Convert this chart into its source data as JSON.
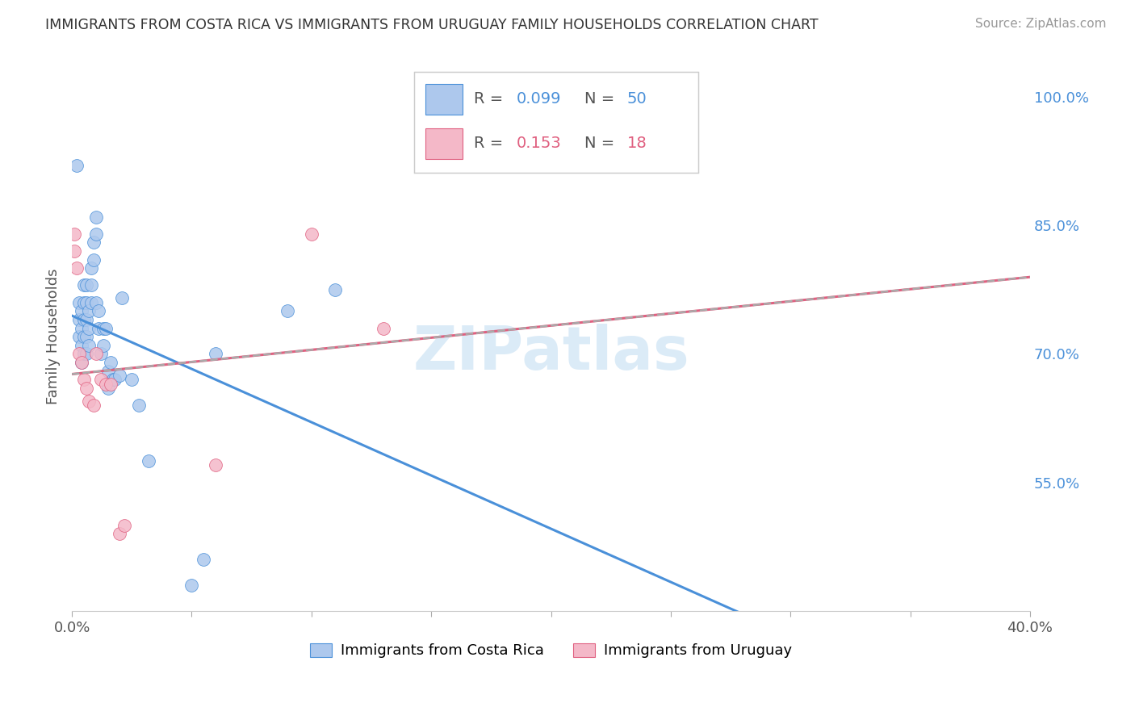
{
  "title": "IMMIGRANTS FROM COSTA RICA VS IMMIGRANTS FROM URUGUAY FAMILY HOUSEHOLDS CORRELATION CHART",
  "source": "Source: ZipAtlas.com",
  "ylabel": "Family Households",
  "cr_color": "#adc8ed",
  "uy_color": "#f4b8c8",
  "cr_line_color": "#4a90d9",
  "uy_line_color": "#e06080",
  "dash_line_color": "#aaaaaa",
  "watermark": "ZIPatlas",
  "background_color": "#ffffff",
  "grid_color": "#d8d8d8",
  "cr_scatter_x": [
    0.002,
    0.003,
    0.003,
    0.003,
    0.004,
    0.004,
    0.004,
    0.004,
    0.005,
    0.005,
    0.005,
    0.005,
    0.005,
    0.006,
    0.006,
    0.006,
    0.006,
    0.006,
    0.007,
    0.007,
    0.007,
    0.008,
    0.008,
    0.008,
    0.009,
    0.009,
    0.01,
    0.01,
    0.01,
    0.011,
    0.011,
    0.012,
    0.013,
    0.013,
    0.014,
    0.015,
    0.015,
    0.016,
    0.017,
    0.018,
    0.02,
    0.021,
    0.025,
    0.028,
    0.032,
    0.05,
    0.055,
    0.06,
    0.09,
    0.11
  ],
  "cr_scatter_y": [
    0.92,
    0.76,
    0.74,
    0.72,
    0.75,
    0.73,
    0.71,
    0.69,
    0.78,
    0.76,
    0.74,
    0.72,
    0.7,
    0.78,
    0.76,
    0.74,
    0.72,
    0.7,
    0.75,
    0.73,
    0.71,
    0.8,
    0.78,
    0.76,
    0.83,
    0.81,
    0.86,
    0.84,
    0.76,
    0.75,
    0.73,
    0.7,
    0.73,
    0.71,
    0.73,
    0.68,
    0.66,
    0.69,
    0.67,
    0.67,
    0.675,
    0.765,
    0.67,
    0.64,
    0.575,
    0.43,
    0.46,
    0.7,
    0.75,
    0.775
  ],
  "uy_scatter_x": [
    0.001,
    0.001,
    0.002,
    0.003,
    0.004,
    0.005,
    0.006,
    0.007,
    0.009,
    0.01,
    0.012,
    0.014,
    0.016,
    0.02,
    0.022,
    0.06,
    0.1,
    0.13
  ],
  "uy_scatter_y": [
    0.84,
    0.82,
    0.8,
    0.7,
    0.69,
    0.67,
    0.66,
    0.645,
    0.64,
    0.7,
    0.67,
    0.665,
    0.665,
    0.49,
    0.5,
    0.57,
    0.84,
    0.73
  ],
  "xlim": [
    0.0,
    0.4
  ],
  "ylim": [
    0.4,
    1.04
  ],
  "cr_line_xlim": [
    0.001,
    0.4
  ],
  "uy_line_xlim": [
    0.001,
    0.4
  ],
  "ytick_positions": [
    0.55,
    0.6,
    0.65,
    0.7,
    0.75,
    0.8,
    0.85,
    0.9,
    0.95,
    1.0
  ],
  "ytick_labels": [
    "55.0%",
    "",
    "",
    "70.0%",
    "",
    "",
    "85.0%",
    "",
    "",
    "100.0%"
  ]
}
